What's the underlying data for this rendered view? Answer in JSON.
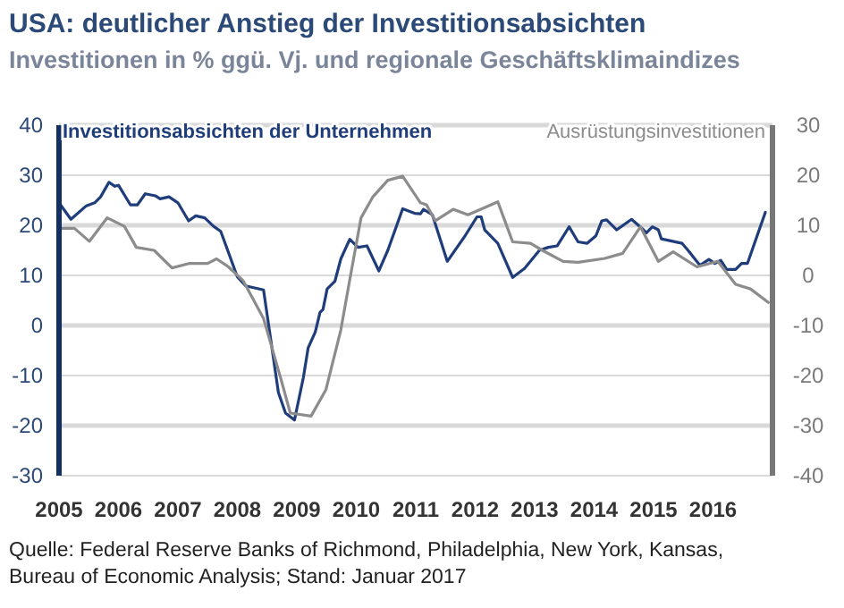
{
  "chart_data": {
    "type": "line",
    "title": "USA: deutlicher Anstieg der Investitionsabsichten",
    "subtitle": "Investitionen in % ggü. Vj. und regionale Geschäftsklimaindizes",
    "annotations": [
      "Quelle: Federal Reserve Banks of Richmond, Philadelphia, New York, Kansas,",
      "Bureau of Economic Analysis; Stand: Januar 2017"
    ],
    "xlim": [
      2005,
      2017
    ],
    "xticks": [
      2005,
      2006,
      2007,
      2008,
      2009,
      2010,
      2011,
      2012,
      2013,
      2014,
      2015,
      2016
    ],
    "ylim": [
      -30,
      40
    ],
    "yticks": [
      -30,
      -20,
      -10,
      0,
      10,
      20,
      30,
      40
    ],
    "y2lim": [
      -40,
      30
    ],
    "y2ticks": [
      -40,
      -30,
      -20,
      -10,
      0,
      10,
      20,
      30
    ],
    "grid": "y",
    "legend": "top",
    "line_style": "solid",
    "marker": "none",
    "series": [
      {
        "name": "Investitionsabsichten der Unternehmen",
        "color": "#1f3d7a",
        "x": [
          2005,
          2005.2,
          2005.46,
          2005.6,
          2005.7,
          2005.84,
          2005.94,
          2006.0,
          2006.2,
          2006.32,
          2006.45,
          2006.62,
          2006.7,
          2006.85,
          2007.0,
          2007.18,
          2007.3,
          2007.45,
          2007.6,
          2007.72,
          2008.0,
          2008.14,
          2008.44,
          2008.69,
          2008.81,
          2008.96,
          2009.11,
          2009.19,
          2009.31,
          2009.39,
          2009.44,
          2009.51,
          2009.64,
          2009.74,
          2009.89,
          2010.03,
          2010.18,
          2010.38,
          2010.53,
          2010.78,
          2010.98,
          2011.08,
          2011.13,
          2011.28,
          2011.53,
          2011.83,
          2012.03,
          2012.1,
          2012.16,
          2012.38,
          2012.63,
          2012.83,
          2013.08,
          2013.23,
          2013.38,
          2013.58,
          2013.73,
          2013.88,
          2014.03,
          2014.13,
          2014.21,
          2014.38,
          2014.63,
          2014.83,
          2014.88,
          2014.98,
          2015.08,
          2015.13,
          2015.48,
          2015.58,
          2015.78,
          2015.93,
          2016.03,
          2016.13,
          2016.23,
          2016.38,
          2016.48,
          2016.58,
          2016.88
        ],
        "values": [
          24.5,
          21.2,
          23.9,
          24.5,
          25.7,
          28.6,
          27.8,
          28,
          24.1,
          24.1,
          26.3,
          25.9,
          25.3,
          25.7,
          24.5,
          20.9,
          21.9,
          21.5,
          19.8,
          18.8,
          9.7,
          7.9,
          7.1,
          -13.4,
          -17.5,
          -18.9,
          -10.4,
          -4.5,
          -1.3,
          2.6,
          3.2,
          7.3,
          8.8,
          13.3,
          17.2,
          15.6,
          15.9,
          10.9,
          15,
          23.3,
          22.4,
          22.3,
          23.2,
          22.1,
          12.8,
          17.9,
          21.7,
          21.7,
          19.1,
          16.4,
          9.6,
          11.4,
          15,
          15.6,
          15.9,
          19.7,
          16.7,
          16.4,
          17.9,
          20.9,
          21.1,
          19.1,
          21.2,
          19.1,
          18.5,
          19.7,
          19.1,
          17.3,
          16.4,
          15,
          12,
          13.2,
          12.4,
          13,
          11.2,
          11.2,
          12.4,
          12.4,
          22.6
        ]
      },
      {
        "name": "Ausrüstungsinvestitionen",
        "color": "#8c8c8c",
        "axis": "y2",
        "x": [
          2005,
          2005.26,
          2005.51,
          2005.81,
          2006.1,
          2006.3,
          2006.6,
          2006.9,
          2007.2,
          2007.5,
          2007.65,
          2007.85,
          2008.1,
          2008.44,
          2008.74,
          2008.89,
          2009.24,
          2009.49,
          2009.74,
          2009.89,
          2010.08,
          2010.28,
          2010.53,
          2010.78,
          2011.08,
          2011.18,
          2011.33,
          2011.63,
          2011.88,
          2012.38,
          2012.63,
          2012.93,
          2013.13,
          2013.48,
          2013.73,
          2014.18,
          2014.48,
          2014.78,
          2015.08,
          2015.33,
          2015.73,
          2016.08,
          2016.38,
          2016.63,
          2016.93
        ],
        "values": [
          9.4,
          9.4,
          6.8,
          11.5,
          9.8,
          5.6,
          5,
          1.5,
          2.4,
          2.4,
          3.3,
          1.7,
          -1.1,
          -8.6,
          -21,
          -27.5,
          -28.1,
          -22.8,
          -10.9,
          -0.9,
          11.5,
          15.7,
          19,
          19.8,
          14.5,
          14.1,
          10.9,
          13.2,
          12.1,
          14.7,
          6.7,
          6.4,
          5,
          2.8,
          2.6,
          3.4,
          4.4,
          9.7,
          2.8,
          4.7,
          1.7,
          2.8,
          -1.8,
          -2.7,
          -5.4
        ]
      }
    ]
  }
}
